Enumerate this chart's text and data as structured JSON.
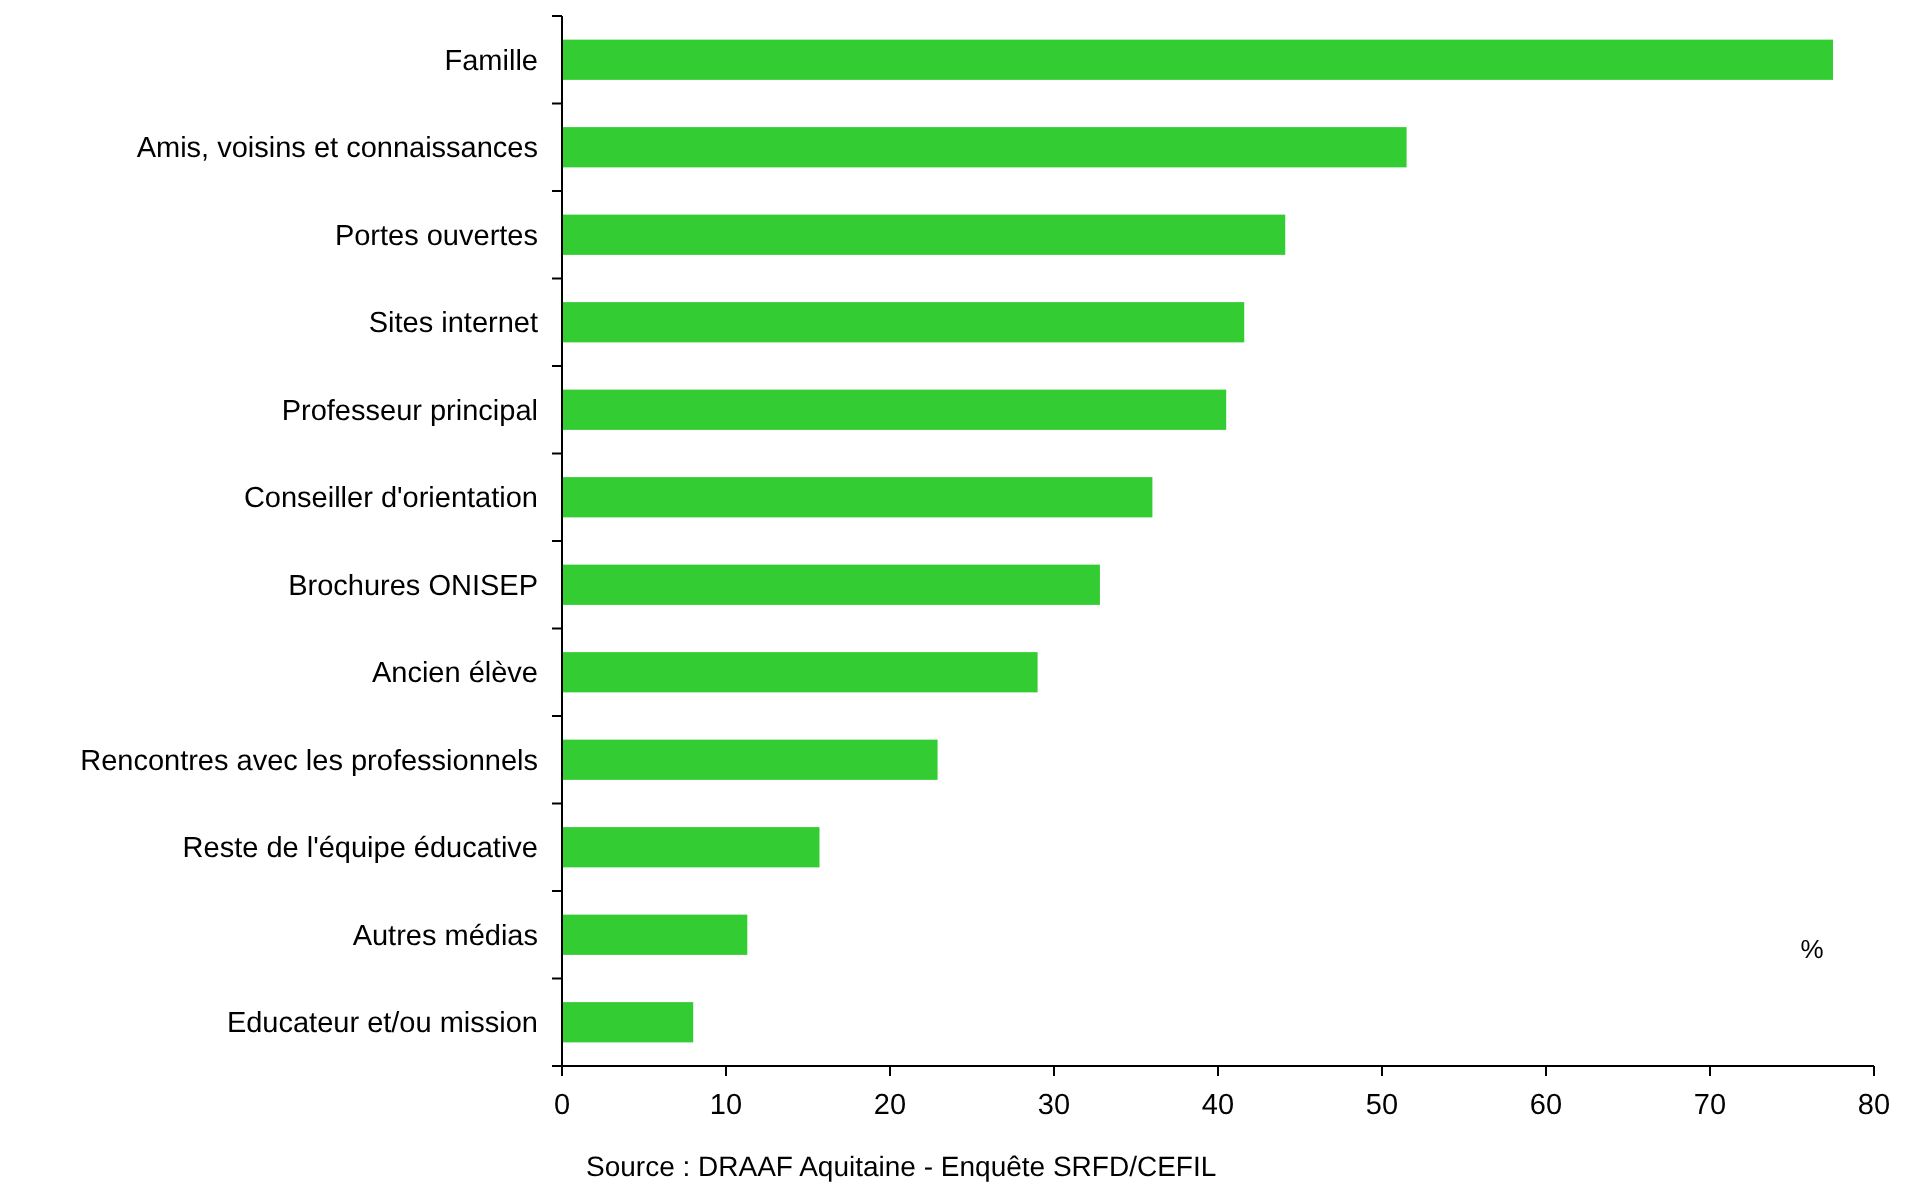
{
  "chart_data": {
    "type": "bar",
    "orientation": "horizontal",
    "categories": [
      "Famille",
      "Amis, voisins et connaissances",
      "Portes ouvertes",
      "Sites internet",
      "Professeur principal",
      "Conseiller d'orientation",
      "Brochures ONISEP",
      "Ancien élève",
      "Rencontres avec les professionnels",
      "Reste de l'équipe éducative",
      "Autres médias",
      "Educateur et/ou mission"
    ],
    "values": [
      77.5,
      51.5,
      44.1,
      41.6,
      40.5,
      36.0,
      32.8,
      29.0,
      22.9,
      15.7,
      11.3,
      8.0
    ],
    "color": "#33cc33",
    "xlim": [
      0,
      80
    ],
    "xticks": [
      0,
      10,
      20,
      30,
      40,
      50,
      60,
      70,
      80
    ],
    "grid": false,
    "annotations": [
      "%",
      "Source : DRAAF Aquitaine - Enquête SRFD/CEFIL"
    ]
  }
}
